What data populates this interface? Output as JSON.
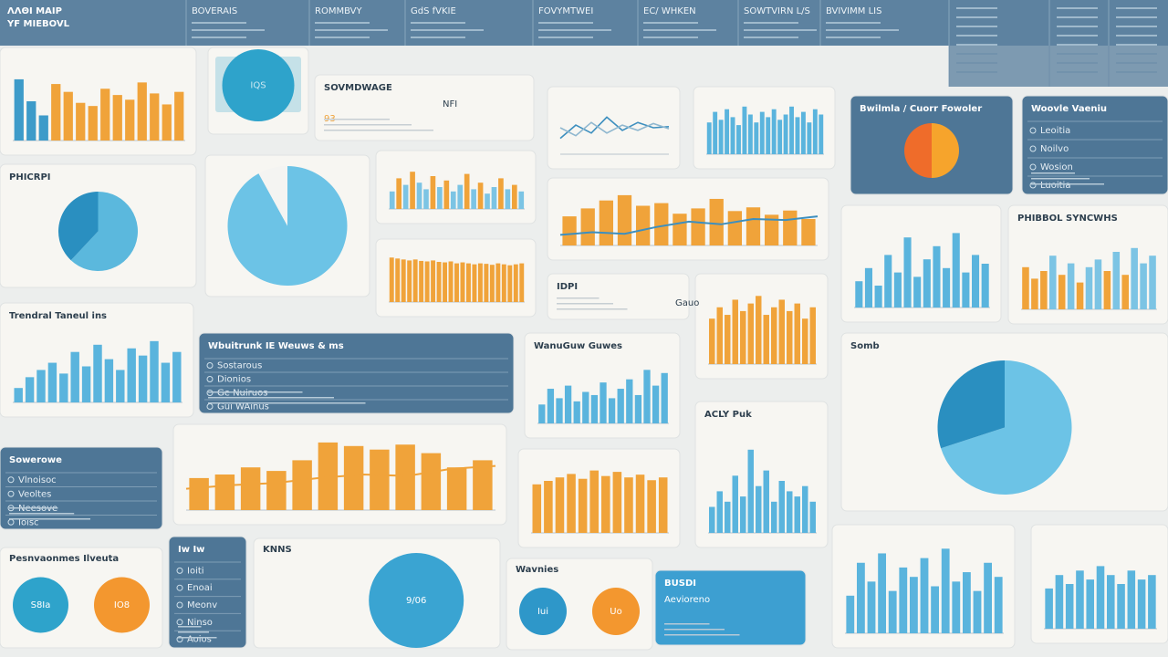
{
  "header": {
    "title": [
      "ΛΛΘΙ ΜΑΙΡ",
      "YF MIEBOVL"
    ],
    "tabs": [
      "BOVERAIS",
      "ROMMBVY",
      "GdS fVKIE",
      "FOVYMTWEI",
      "EC/ WHKEN",
      "SOWTVIRN L/S",
      "BVIVIMM LIS"
    ]
  },
  "chart_data": [
    {
      "type": "bar",
      "values": [
        78,
        50,
        32,
        72,
        62,
        48,
        44,
        66,
        58,
        52,
        74,
        60,
        46,
        62
      ],
      "colors": [
        "#3d9bc9",
        "#3d9bc9",
        "#3d9bc9",
        "#f0a33a",
        "#f0a33a",
        "#f0a33a",
        "#f0a33a",
        "#f0a33a",
        "#f0a33a",
        "#f0a33a",
        "#f0a33a",
        "#f0a33a",
        "#f0a33a",
        "#f0a33a"
      ],
      "ylim": [
        0,
        100
      ]
    },
    {
      "type": "pie",
      "title": "PHICRPI",
      "values": [
        62,
        38
      ],
      "colors": [
        "#5bb8dd",
        "#2a8fc0"
      ]
    },
    {
      "type": "pie",
      "values": [
        92,
        8
      ],
      "colors": [
        "#6cc3e6",
        "#f4f4f2"
      ]
    },
    {
      "type": "bar",
      "values": [
        40,
        70,
        55,
        85,
        60,
        45,
        75,
        50,
        65,
        40,
        55,
        80,
        45,
        60,
        35,
        50,
        70,
        45,
        55,
        40
      ],
      "colors": [
        "#7cc4e4",
        "#f0a33a",
        "#7cc4e4",
        "#f0a33a",
        "#7cc4e4",
        "#7cc4e4",
        "#f0a33a",
        "#7cc4e4",
        "#f0a33a",
        "#7cc4e4",
        "#7cc4e4",
        "#f0a33a",
        "#7cc4e4",
        "#f0a33a",
        "#7cc4e4",
        "#7cc4e4",
        "#f0a33a",
        "#7cc4e4",
        "#f0a33a",
        "#7cc4e4"
      ],
      "ylim": [
        0,
        100
      ]
    },
    {
      "type": "bar",
      "values": [
        92,
        90,
        88,
        86,
        88,
        85,
        84,
        86,
        83,
        82,
        84,
        80,
        82,
        80,
        78,
        80,
        79,
        77,
        80,
        78,
        76,
        78,
        80
      ],
      "color": "#f0a33a",
      "ylim": [
        0,
        100
      ]
    },
    {
      "type": "line",
      "lines": [
        {
          "color": "#3d8fbf",
          "values": [
            30,
            55,
            40,
            70,
            45,
            60,
            50,
            52
          ]
        },
        {
          "color": "#8fb7cf",
          "values": [
            50,
            35,
            60,
            40,
            55,
            45,
            58,
            48
          ]
        }
      ],
      "ylim": [
        0,
        100
      ]
    },
    {
      "type": "bar",
      "values": [
        60,
        80,
        65,
        85,
        70,
        55,
        90,
        75,
        60,
        80,
        70,
        85,
        65,
        75,
        90,
        70,
        80,
        60,
        85,
        75
      ],
      "color": "#5ab4dd",
      "ylim": [
        0,
        100
      ]
    },
    {
      "type": "pie",
      "dark": true,
      "title": "Bwilmla  /  Cuorr Fowoler",
      "values": [
        50,
        50
      ],
      "colors": [
        "#f6a42c",
        "#ef6c2a"
      ]
    },
    {
      "type": "bar_line",
      "values": [
        55,
        70,
        85,
        95,
        75,
        80,
        60,
        70,
        88,
        65,
        72,
        58,
        66,
        50
      ],
      "color": "#f0a33a",
      "line": {
        "color": "#3d8fbf",
        "values": [
          20,
          25,
          22,
          35,
          45,
          40,
          50,
          48,
          55
        ]
      },
      "ylim": [
        0,
        100
      ]
    },
    {
      "type": "bar",
      "title": "Trendral Taneul ins",
      "values": [
        20,
        35,
        45,
        55,
        40,
        70,
        50,
        80,
        60,
        45,
        75,
        65,
        85,
        55,
        70
      ],
      "color": "#5ab4dd",
      "ylim": [
        0,
        100
      ]
    },
    {
      "type": "bar",
      "title": "WanuGuw Guwes",
      "values": [
        30,
        55,
        40,
        60,
        35,
        50,
        45,
        65,
        40,
        55,
        70,
        45,
        85,
        60,
        80
      ],
      "color": "#5ab4dd",
      "ylim": [
        0,
        100
      ]
    },
    {
      "type": "bar",
      "values": [
        60,
        75,
        65,
        85,
        70,
        80,
        90,
        65,
        75,
        85,
        70,
        80,
        60,
        75
      ],
      "color": "#f0a33a",
      "ylim": [
        0,
        100
      ]
    },
    {
      "type": "bar",
      "values": [
        30,
        45,
        25,
        60,
        40,
        80,
        35,
        55,
        70,
        45,
        85,
        40,
        60,
        50
      ],
      "color": "#5ab4dd",
      "ylim": [
        0,
        100
      ]
    },
    {
      "type": "bar",
      "title": "PHIBBOL SYNCWHS",
      "values": [
        55,
        40,
        50,
        70,
        45,
        60,
        35,
        55,
        65,
        50,
        75,
        45,
        80,
        60,
        70
      ],
      "colors": [
        "#f0a33a",
        "#f0a33a",
        "#f0a33a",
        "#7cc4e4",
        "#f0a33a",
        "#7cc4e4",
        "#f0a33a",
        "#7cc4e4",
        "#7cc4e4",
        "#f0a33a",
        "#7cc4e4",
        "#f0a33a",
        "#7cc4e4",
        "#7cc4e4",
        "#7cc4e4"
      ],
      "ylim": [
        0,
        100
      ]
    },
    {
      "type": "pie",
      "title": "Somb",
      "values": [
        70,
        30
      ],
      "colors": [
        "#6cc3e6",
        "#2a8fc0"
      ]
    },
    {
      "type": "bar",
      "title": "ACLY Puk",
      "values": [
        25,
        40,
        30,
        55,
        35,
        80,
        45,
        60,
        30,
        50,
        40,
        35,
        45,
        30
      ],
      "color": "#5ab4dd",
      "ylim": [
        0,
        100
      ]
    },
    {
      "type": "bar_line",
      "values": [
        45,
        50,
        60,
        55,
        70,
        95,
        90,
        85,
        92,
        80,
        60,
        70
      ],
      "color": "#f0a33a",
      "line": {
        "color": "#f0a33a",
        "values": [
          30,
          35,
          38,
          45,
          50,
          48,
          58,
          62
        ]
      },
      "ylim": [
        0,
        100
      ]
    },
    {
      "type": "bar",
      "values": [
        70,
        75,
        80,
        85,
        78,
        90,
        82,
        88,
        80,
        84,
        76,
        80
      ],
      "color": "#f0a33a",
      "ylim": [
        0,
        100
      ]
    },
    {
      "type": "bar",
      "values": [
        40,
        75,
        55,
        85,
        45,
        70,
        60,
        80,
        50,
        90,
        55,
        65,
        45,
        75,
        60
      ],
      "color": "#5ab4dd",
      "ylim": [
        0,
        100
      ]
    },
    {
      "type": "bar",
      "values": [
        45,
        60,
        50,
        65,
        55,
        70,
        60,
        50,
        65,
        55,
        60
      ],
      "color": "#5ab4dd",
      "ylim": [
        0,
        100
      ]
    }
  ],
  "panels": [
    {
      "type": "stat",
      "title": "IQS",
      "circles": [
        {
          "label": "IQS",
          "color": "#2ea3cb"
        }
      ]
    },
    {
      "type": "text",
      "title": "SOVMDWAGE",
      "lines": [
        "NFI",
        "93"
      ]
    },
    {
      "type": "table",
      "title": "Woovle Vaeniu",
      "rows": [
        "Leoitia",
        "Noilvo",
        "Wosion",
        "Luoitia"
      ]
    },
    {
      "type": "table",
      "title": "Wbuitrunk   IE Weuws & ms",
      "rows": [
        "Sostarous",
        "Dionios",
        "Ge Nuiruos",
        "Gui WAinus"
      ]
    },
    {
      "type": "text",
      "title": "IDPI",
      "lines": [
        "Gauo"
      ]
    },
    {
      "type": "table",
      "title": "Sowerowe",
      "rows": [
        "Vlnoisoc",
        "Veoltes",
        "Neesove",
        "Ioisc"
      ]
    },
    {
      "type": "stat",
      "title": "Pesnvaonmes Ilveuta",
      "circles": [
        {
          "label": "S8Ia",
          "color": "#2ea3cb"
        },
        {
          "label": "IO8",
          "color": "#f3972f"
        }
      ]
    },
    {
      "type": "table",
      "title": "Iw Iw",
      "rows": [
        "Ioiti",
        "Enoai",
        "Meonv",
        "Ninso",
        "Aoios"
      ]
    },
    {
      "type": "stat",
      "title": "ΚΝΝS",
      "circles": [
        {
          "label": "9/06",
          "color": "#3aa4d2"
        }
      ]
    },
    {
      "type": "stat",
      "title": "Wavnies",
      "circles": [
        {
          "label": "Iui",
          "color": "#2e97c9"
        },
        {
          "label": "Uo",
          "color": "#f3972f"
        }
      ]
    },
    {
      "type": "teal",
      "title": "BUSDI",
      "lines": [
        "Aevioreno"
      ]
    }
  ]
}
